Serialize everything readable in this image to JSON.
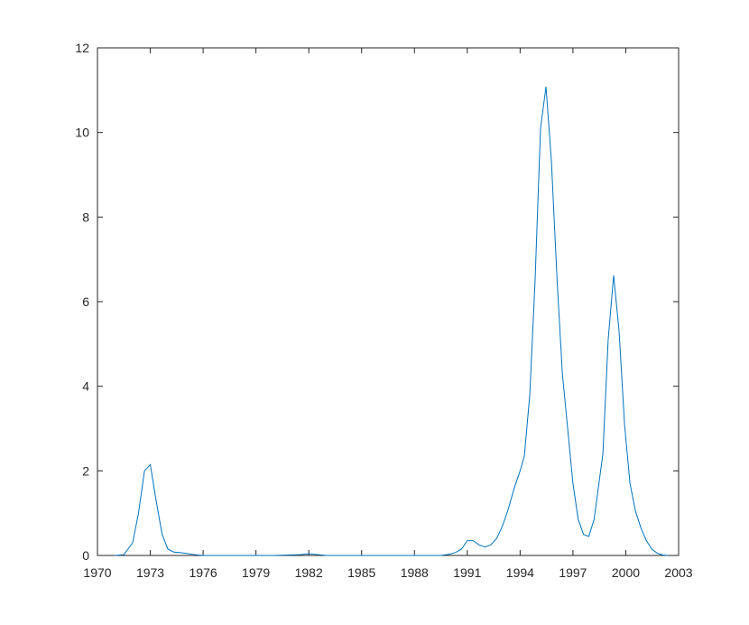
{
  "chart_data": {
    "type": "line",
    "x": [
      1971.0,
      1971.5,
      1972.0,
      1972.33,
      1972.67,
      1973.0,
      1973.33,
      1973.67,
      1974.0,
      1974.33,
      1974.67,
      1975.0,
      1975.5,
      1976.0,
      1978.0,
      1980.0,
      1981.5,
      1982.0,
      1982.5,
      1983.0,
      1986.0,
      1989.5,
      1990.0,
      1990.33,
      1990.67,
      1991.0,
      1991.33,
      1991.67,
      1992.0,
      1992.33,
      1992.67,
      1993.0,
      1993.33,
      1993.67,
      1994.0,
      1994.24,
      1994.55,
      1994.85,
      1995.16,
      1995.47,
      1995.78,
      1996.1,
      1996.4,
      1996.7,
      1997.0,
      1997.3,
      1997.6,
      1997.9,
      1998.2,
      1998.7,
      1999.0,
      1999.31,
      1999.62,
      1999.93,
      2000.24,
      2000.55,
      2000.86,
      2001.17,
      2001.48,
      2001.8,
      2002.1,
      2002.4
    ],
    "series": [
      {
        "color": "#0072bd",
        "values": [
          0,
          0.02,
          0.3,
          1.0,
          2.0,
          2.15,
          1.3,
          0.5,
          0.15,
          0.08,
          0.07,
          0.05,
          0.02,
          0,
          0,
          0,
          0.02,
          0.04,
          0.02,
          0,
          0,
          0,
          0.03,
          0.07,
          0.15,
          0.35,
          0.35,
          0.25,
          0.2,
          0.25,
          0.4,
          0.7,
          1.1,
          1.6,
          2.0,
          2.35,
          3.8,
          6.5,
          10.1,
          11.08,
          9.3,
          6.5,
          4.3,
          3.0,
          1.7,
          0.85,
          0.5,
          0.45,
          0.85,
          2.4,
          5.1,
          6.62,
          5.3,
          3.1,
          1.7,
          1.05,
          0.65,
          0.35,
          0.15,
          0.05,
          0.01,
          0
        ]
      }
    ],
    "xlim": [
      1970,
      2003
    ],
    "xticks": [
      1970,
      1973,
      1976,
      1979,
      1982,
      1985,
      1988,
      1991,
      1994,
      1997,
      2000,
      2003
    ],
    "ylim": [
      0,
      12
    ],
    "yticks": [
      0,
      2,
      4,
      6,
      8,
      10,
      12
    ]
  }
}
